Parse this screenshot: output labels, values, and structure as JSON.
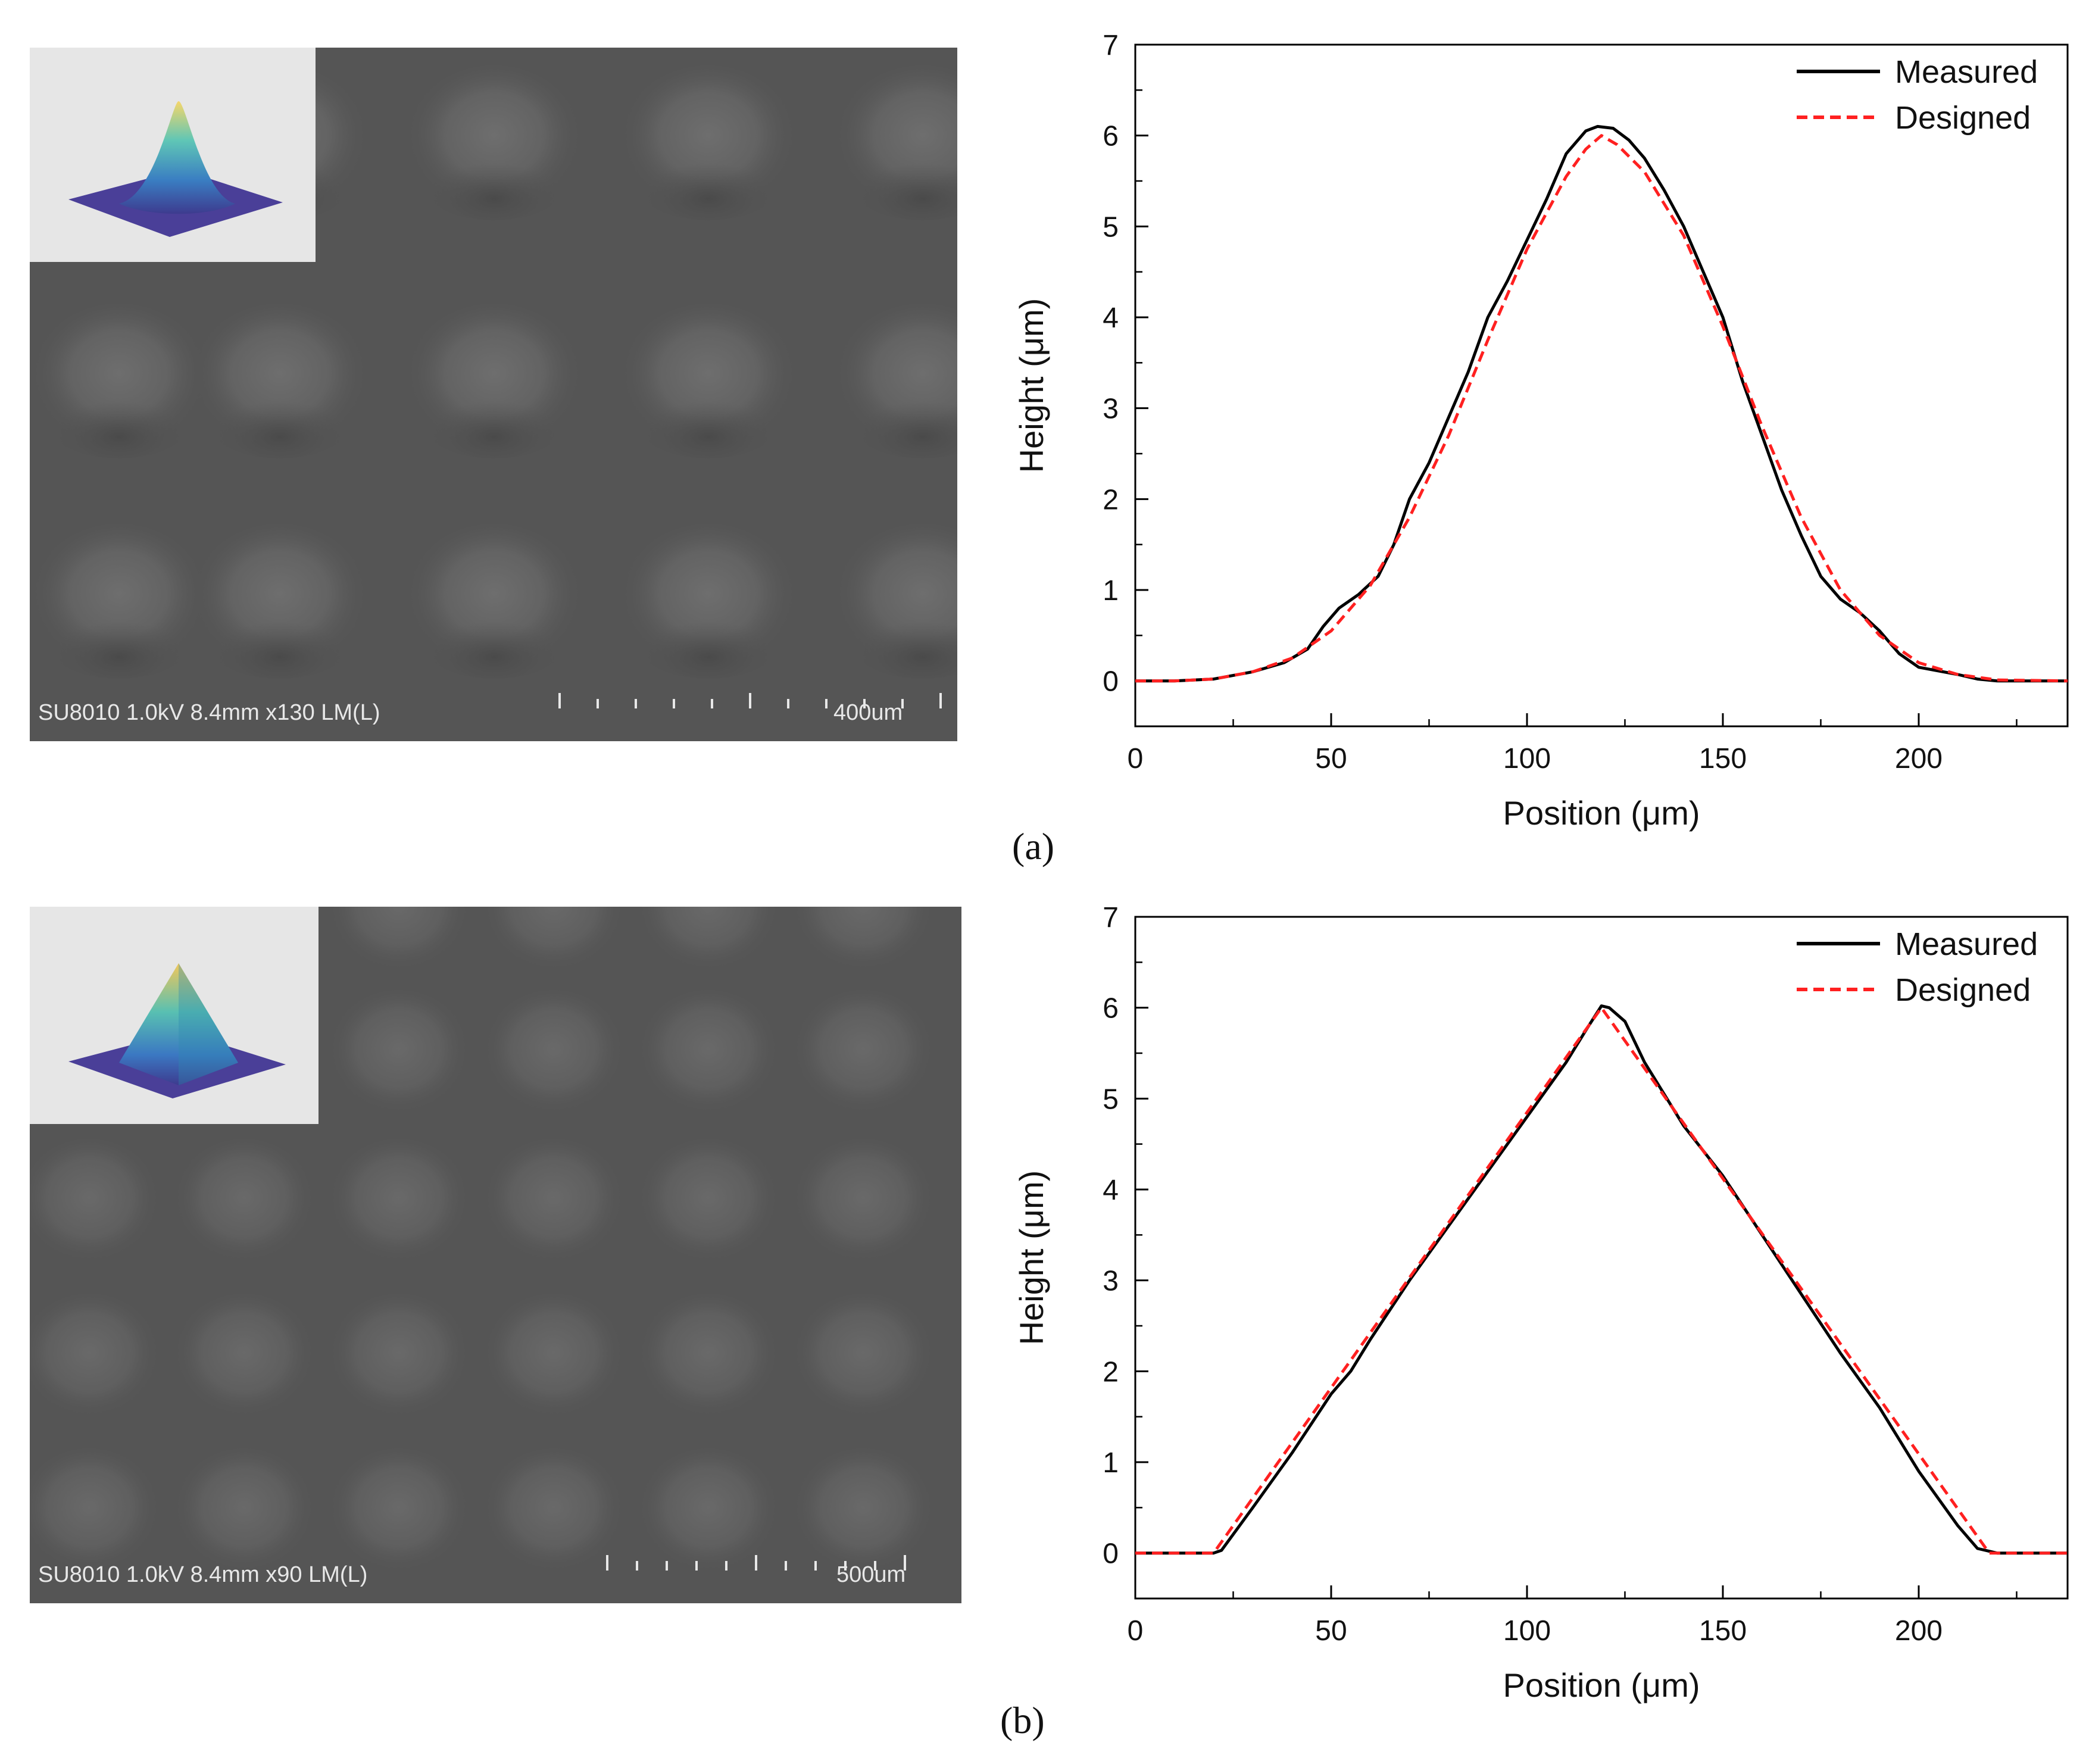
{
  "panels": [
    {
      "label": "(a)",
      "sem_caption": "SU8010 1.0kV 8.4mm x130 LM(L)",
      "sem_scale": "400um",
      "inset_icon": "gaussian-bump-3d-icon"
    },
    {
      "label": "(b)",
      "sem_caption": "SU8010 1.0kV 8.4mm x90 LM(L)",
      "sem_scale": "500um",
      "inset_icon": "pyramid-3d-icon"
    }
  ],
  "colors": {
    "measured": "#000000",
    "designed": "#ff2020",
    "sem_bg": "#555555",
    "inset_bg": "#e6e6e6"
  },
  "chart_data": [
    {
      "type": "line",
      "title": "",
      "xlabel": "Position (μm)",
      "ylabel": "Height (μm)",
      "xlim": [
        0,
        238
      ],
      "ylim": [
        -0.5,
        7
      ],
      "xticks": [
        0,
        50,
        100,
        150,
        200
      ],
      "yticks": [
        0,
        1,
        2,
        3,
        4,
        5,
        6,
        7
      ],
      "legend_position": "top-right",
      "series": [
        {
          "name": "Measured",
          "style": "solid",
          "points": [
            [
              0,
              0
            ],
            [
              10,
              0
            ],
            [
              20,
              0.02
            ],
            [
              30,
              0.1
            ],
            [
              38,
              0.2
            ],
            [
              44,
              0.35
            ],
            [
              48,
              0.6
            ],
            [
              52,
              0.8
            ],
            [
              57,
              0.95
            ],
            [
              62,
              1.15
            ],
            [
              66,
              1.5
            ],
            [
              70,
              2.0
            ],
            [
              75,
              2.4
            ],
            [
              80,
              2.9
            ],
            [
              85,
              3.4
            ],
            [
              90,
              4.0
            ],
            [
              95,
              4.4
            ],
            [
              100,
              4.85
            ],
            [
              105,
              5.3
            ],
            [
              110,
              5.8
            ],
            [
              115,
              6.05
            ],
            [
              118,
              6.1
            ],
            [
              122,
              6.08
            ],
            [
              126,
              5.95
            ],
            [
              130,
              5.75
            ],
            [
              135,
              5.4
            ],
            [
              140,
              5.0
            ],
            [
              145,
              4.5
            ],
            [
              150,
              4.0
            ],
            [
              155,
              3.3
            ],
            [
              160,
              2.7
            ],
            [
              165,
              2.1
            ],
            [
              170,
              1.6
            ],
            [
              175,
              1.15
            ],
            [
              180,
              0.9
            ],
            [
              185,
              0.75
            ],
            [
              190,
              0.55
            ],
            [
              195,
              0.3
            ],
            [
              200,
              0.15
            ],
            [
              210,
              0.07
            ],
            [
              215,
              0.02
            ],
            [
              220,
              0
            ],
            [
              238,
              0
            ]
          ]
        },
        {
          "name": "Designed",
          "style": "dashed",
          "points": [
            [
              0,
              0
            ],
            [
              10,
              0
            ],
            [
              20,
              0.02
            ],
            [
              30,
              0.1
            ],
            [
              40,
              0.25
            ],
            [
              50,
              0.55
            ],
            [
              60,
              1.05
            ],
            [
              70,
              1.8
            ],
            [
              80,
              2.7
            ],
            [
              90,
              3.75
            ],
            [
              100,
              4.75
            ],
            [
              110,
              5.55
            ],
            [
              115,
              5.85
            ],
            [
              119,
              6.0
            ],
            [
              123,
              5.9
            ],
            [
              130,
              5.6
            ],
            [
              140,
              4.9
            ],
            [
              150,
              3.9
            ],
            [
              160,
              2.8
            ],
            [
              170,
              1.8
            ],
            [
              180,
              1.0
            ],
            [
              190,
              0.5
            ],
            [
              200,
              0.2
            ],
            [
              210,
              0.07
            ],
            [
              220,
              0.01
            ],
            [
              238,
              0
            ]
          ]
        }
      ]
    },
    {
      "type": "line",
      "title": "",
      "xlabel": "Position (μm)",
      "ylabel": "Height (μm)",
      "xlim": [
        0,
        238
      ],
      "ylim": [
        -0.5,
        7
      ],
      "xticks": [
        0,
        50,
        100,
        150,
        200
      ],
      "yticks": [
        0,
        1,
        2,
        3,
        4,
        5,
        6,
        7
      ],
      "legend_position": "top-right",
      "series": [
        {
          "name": "Measured",
          "style": "solid",
          "points": [
            [
              0,
              0
            ],
            [
              20,
              0
            ],
            [
              22,
              0.03
            ],
            [
              30,
              0.5
            ],
            [
              40,
              1.1
            ],
            [
              50,
              1.75
            ],
            [
              55,
              2.0
            ],
            [
              60,
              2.35
            ],
            [
              70,
              3.0
            ],
            [
              80,
              3.6
            ],
            [
              90,
              4.2
            ],
            [
              100,
              4.8
            ],
            [
              110,
              5.4
            ],
            [
              115,
              5.75
            ],
            [
              119,
              6.02
            ],
            [
              121,
              6.0
            ],
            [
              125,
              5.85
            ],
            [
              130,
              5.4
            ],
            [
              140,
              4.7
            ],
            [
              150,
              4.15
            ],
            [
              160,
              3.5
            ],
            [
              170,
              2.85
            ],
            [
              180,
              2.2
            ],
            [
              190,
              1.6
            ],
            [
              200,
              0.9
            ],
            [
              210,
              0.3
            ],
            [
              215,
              0.05
            ],
            [
              220,
              0
            ],
            [
              238,
              0
            ]
          ]
        },
        {
          "name": "Designed",
          "style": "dashed",
          "points": [
            [
              0,
              0
            ],
            [
              20,
              0
            ],
            [
              119,
              6.0
            ],
            [
              218,
              0
            ],
            [
              238,
              0
            ]
          ]
        }
      ]
    }
  ]
}
